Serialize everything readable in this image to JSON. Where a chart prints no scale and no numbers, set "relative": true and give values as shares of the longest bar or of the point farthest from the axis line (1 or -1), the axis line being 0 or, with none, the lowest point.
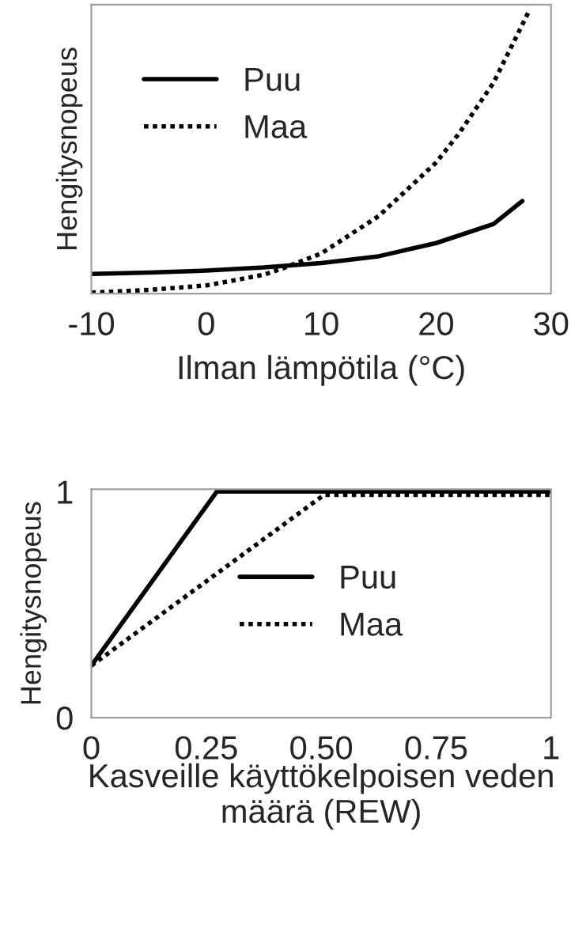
{
  "chart_data": [
    {
      "type": "line",
      "relative": true,
      "xlabel": "Ilman lämpötila (°C)",
      "ylabel": "Hengitysnopeus",
      "xlim": [
        -10,
        30
      ],
      "xticks": [
        -10,
        0,
        10,
        20,
        30
      ],
      "tick_labels": "x",
      "legend": "left",
      "grid": false,
      "series": [
        {
          "name": "Puu",
          "color": "#000000",
          "line_style": "solid",
          "x": [
            -10,
            -5,
            0,
            5,
            10,
            15,
            20,
            25,
            27.5
          ],
          "values": [
            0.07,
            0.075,
            0.082,
            0.093,
            0.109,
            0.133,
            0.18,
            0.248,
            0.33
          ]
        },
        {
          "name": "Maa",
          "color": "#000000",
          "line_style": "dotted",
          "x": [
            -10,
            -5,
            0,
            5,
            7,
            10,
            15,
            20,
            22,
            25,
            28
          ],
          "values": [
            0.004,
            0.013,
            0.029,
            0.067,
            0.095,
            0.143,
            0.276,
            0.467,
            0.571,
            0.752,
            1
          ]
        }
      ]
    },
    {
      "type": "line",
      "xlabel": "Kasveille käyttökelpoisen veden määrä (REW)",
      "ylabel": "Hengitysnopeus",
      "xlim": [
        0,
        1
      ],
      "xticks": [
        0,
        {
          "value": 0.25,
          "label": "0.25"
        },
        {
          "value": 0.5,
          "label": "0.50"
        },
        {
          "value": 0.75,
          "label": "0.75"
        },
        1
      ],
      "ylim": [
        0,
        1.01
      ],
      "yticks": [
        0,
        1
      ],
      "legend": "center",
      "grid": false,
      "series": [
        {
          "name": "Puu",
          "color": "#000000",
          "line_style": "solid",
          "x": [
            0,
            0.273,
            1
          ],
          "values": [
            0.23,
            1.0,
            1.0
          ]
        },
        {
          "name": "Maa",
          "color": "#000000",
          "line_style": "dotted",
          "x": [
            0,
            0.506,
            1
          ],
          "values": [
            0.23,
            0.985,
            0.985
          ]
        }
      ]
    }
  ]
}
